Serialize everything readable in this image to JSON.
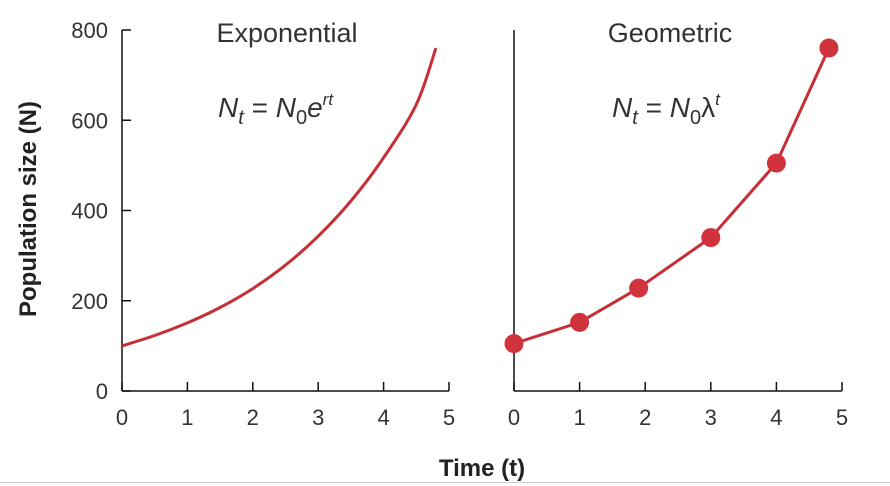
{
  "chart_data": [
    {
      "type": "line",
      "title": "Exponential",
      "equation": {
        "lhs": "N",
        "lhs_sub": "t",
        "eq": " = ",
        "rhs": "N",
        "rhs_sub": "0",
        "base": "e",
        "exp": "rt"
      },
      "xlabel": "Time (t)",
      "ylabel": "Population size (N)",
      "xlim": [
        0,
        5
      ],
      "ylim": [
        0,
        800
      ],
      "xticks": [
        "0",
        "1",
        "2",
        "3",
        "4",
        "5"
      ],
      "yticks": [
        "0",
        "200",
        "400",
        "600",
        "800"
      ],
      "x": [
        0,
        0.5,
        1,
        1.5,
        2,
        2.5,
        3,
        3.5,
        4,
        4.5,
        4.8
      ],
      "y": [
        100,
        123,
        151,
        185,
        227,
        279,
        343,
        421,
        517,
        635,
        760
      ],
      "line_color": "#c62f36"
    },
    {
      "type": "line",
      "title": "Geometric",
      "equation": {
        "lhs": "N",
        "lhs_sub": "t",
        "eq": " = ",
        "rhs": "N",
        "rhs_sub": "0",
        "base": "λ",
        "exp": "t"
      },
      "xlim": [
        0,
        5
      ],
      "ylim": [
        0,
        800
      ],
      "xticks": [
        "0",
        "1",
        "2",
        "3",
        "4",
        "5"
      ],
      "x": [
        0,
        1,
        1.9,
        3,
        4,
        4.8
      ],
      "y": [
        105,
        152,
        228,
        340,
        505,
        760
      ],
      "markers": true,
      "line_color": "#c62f36",
      "marker_color": "#d0333b"
    }
  ]
}
